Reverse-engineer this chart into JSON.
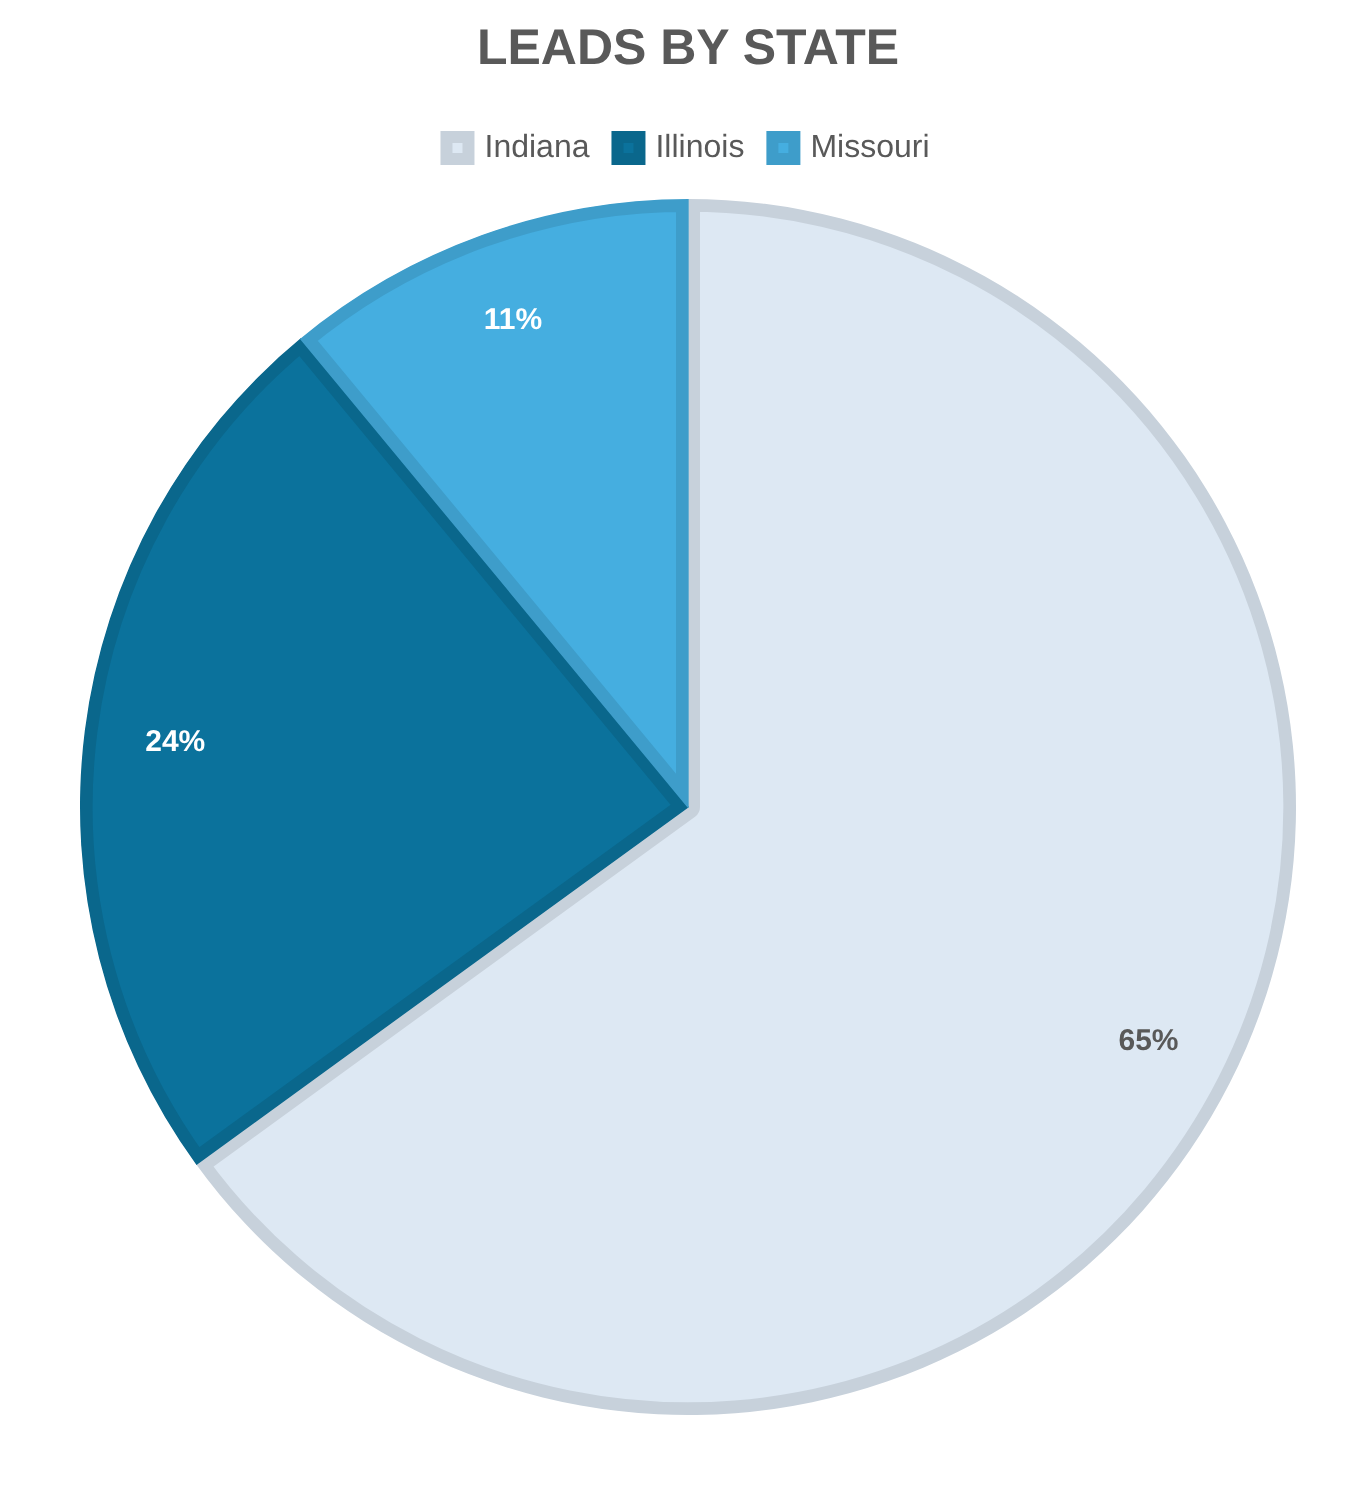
{
  "chart_data": {
    "type": "pie",
    "title": "LEADS BY STATE",
    "categories": [
      "Indiana",
      "Illinois",
      "Missouri"
    ],
    "values": [
      65,
      24,
      11
    ],
    "colors": [
      "#dde8f3",
      "#0b729c",
      "#45aee0"
    ],
    "value_labels": [
      "65%",
      "24%",
      "11%"
    ],
    "legend": "top"
  }
}
